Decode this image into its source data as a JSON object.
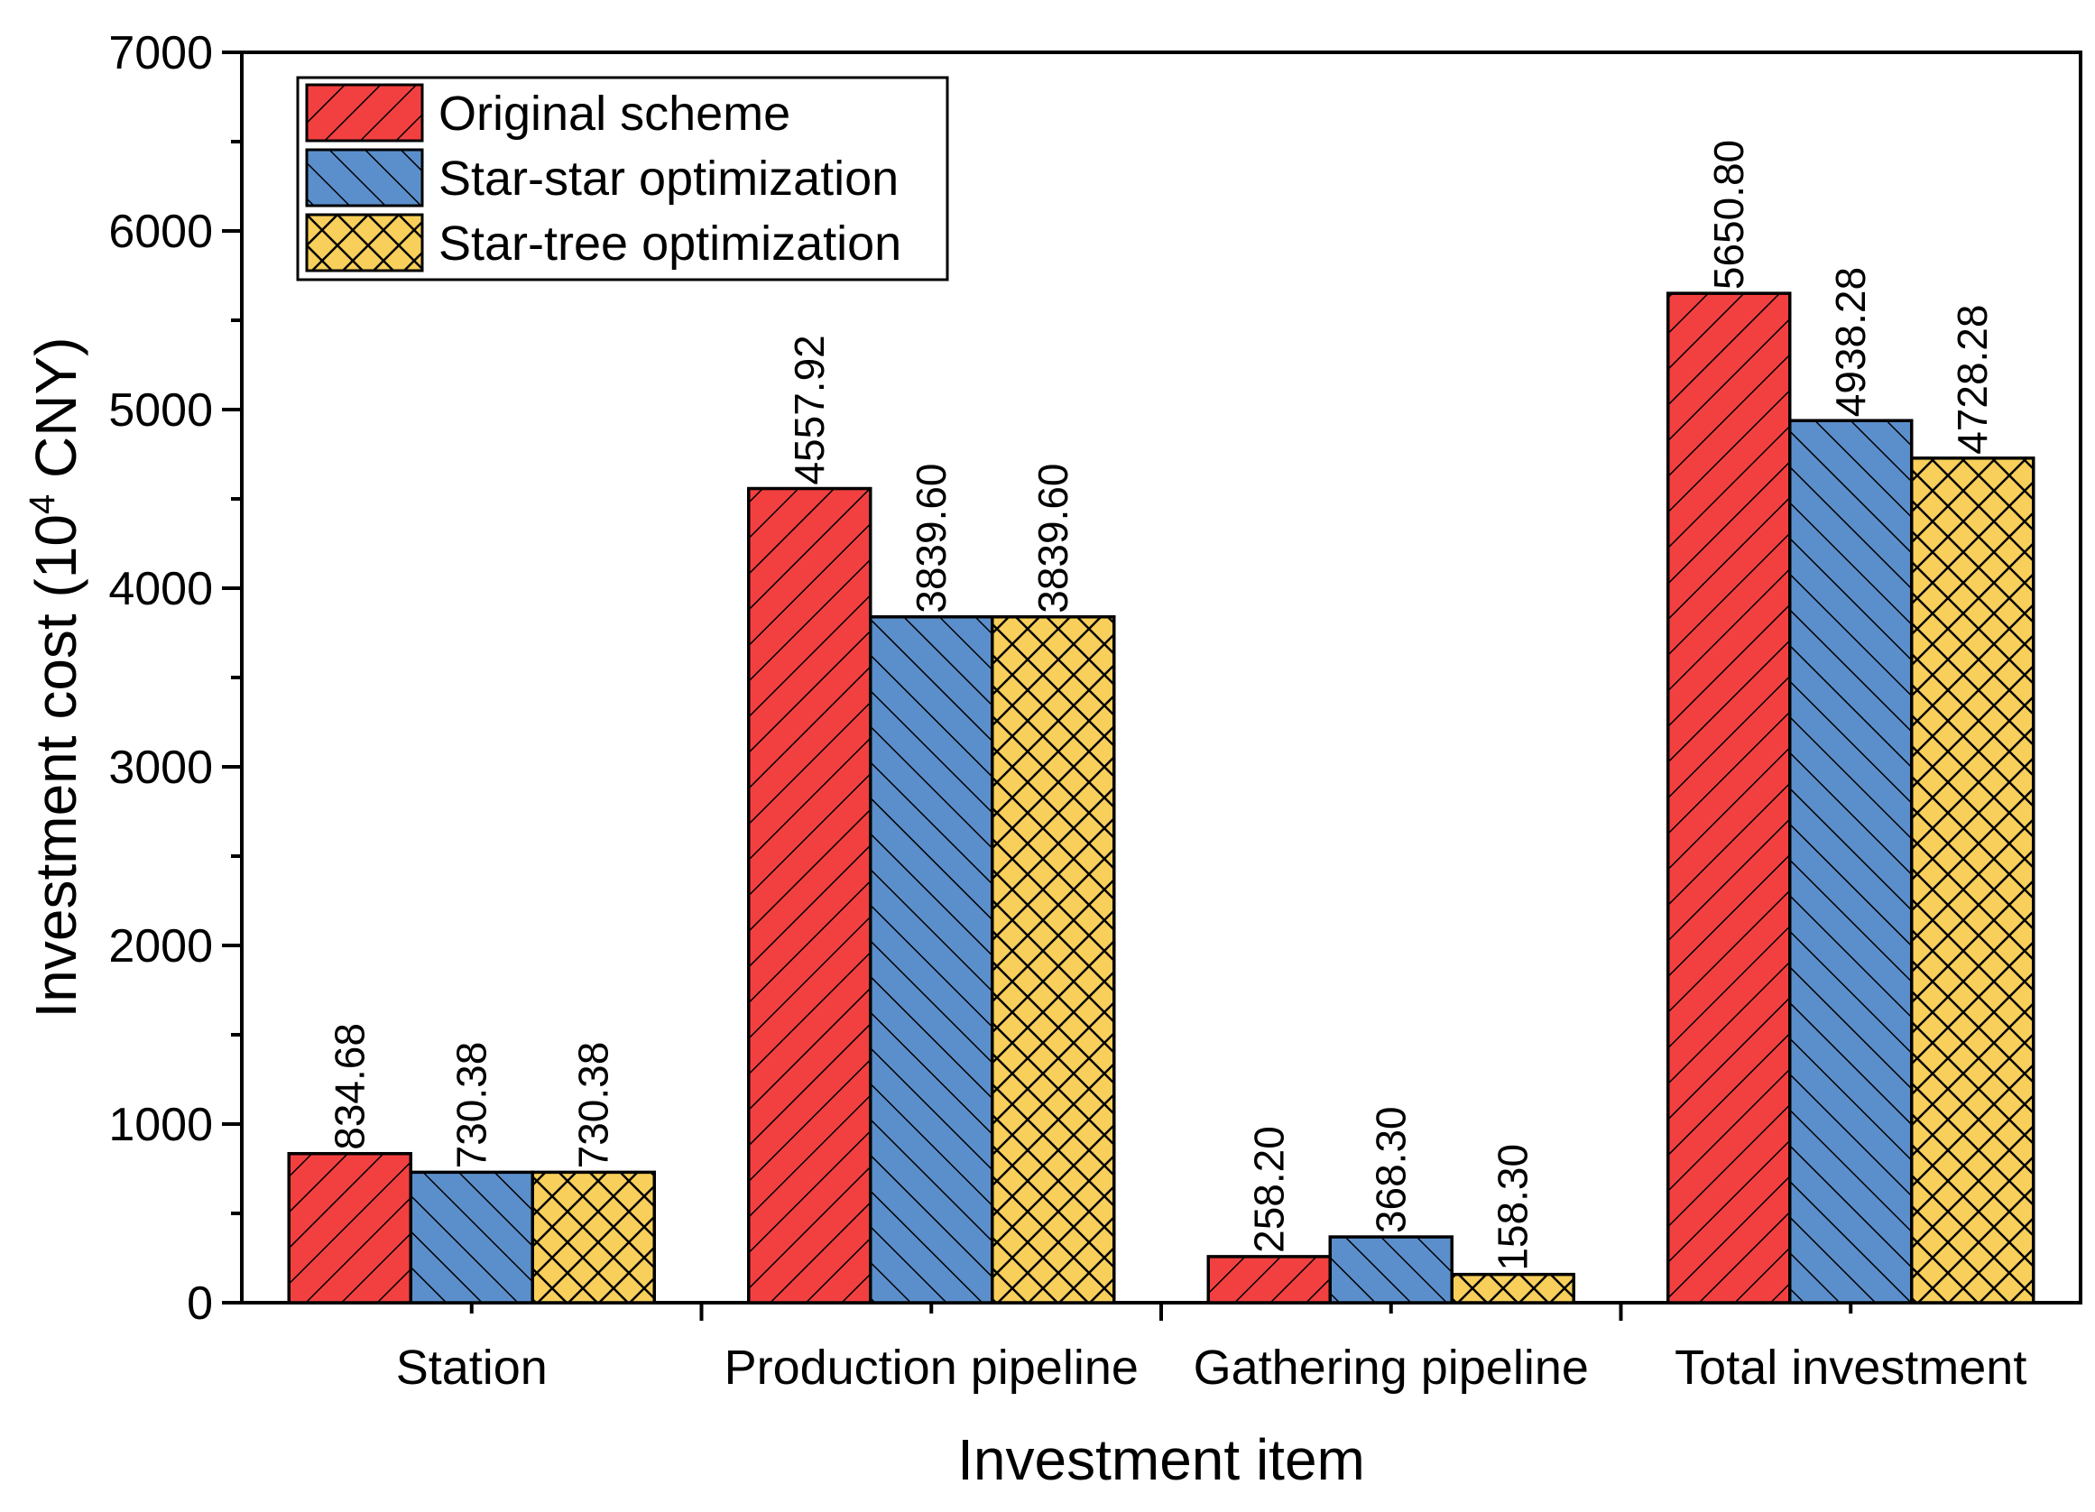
{
  "chart_data": {
    "type": "bar",
    "title": "",
    "xlabel": "Investment item",
    "ylabel_main": "Investment cost (10",
    "ylabel_sup": "4",
    "ylabel_tail": " CNY)",
    "ylim": [
      0,
      7000
    ],
    "yticks": [
      0,
      1000,
      2000,
      3000,
      4000,
      5000,
      6000,
      7000
    ],
    "categories": [
      "Station",
      "Production pipeline",
      "Gathering pipeline",
      "Total investment"
    ],
    "legend_position": "top-left",
    "series": [
      {
        "name": "Original scheme",
        "color": "#f24040",
        "pattern": "diag-up",
        "values": [
          834.68,
          4557.92,
          258.2,
          5650.8
        ],
        "labels": [
          "834.68",
          "4557.92",
          "258.20",
          "5650.80"
        ]
      },
      {
        "name": "Star-star optimization",
        "color": "#5b8fcc",
        "pattern": "diag-down",
        "values": [
          730.38,
          3839.6,
          368.3,
          4938.28
        ],
        "labels": [
          "730.38",
          "3839.60",
          "368.30",
          "4938.28"
        ]
      },
      {
        "name": "Star-tree optimization",
        "color": "#f7cf5a",
        "pattern": "cross",
        "values": [
          730.38,
          3839.6,
          158.3,
          4728.28
        ],
        "labels": [
          "730.38",
          "3839.60",
          "158.30",
          "4728.28"
        ]
      }
    ]
  }
}
